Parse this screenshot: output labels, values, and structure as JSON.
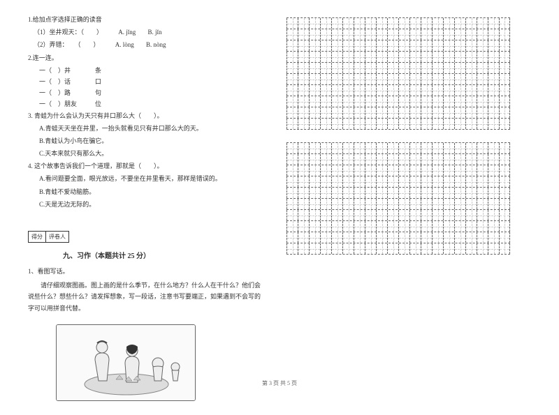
{
  "q1": {
    "title": "1.给加点字选择正确的读音",
    "items": [
      {
        "text": "（1）坐井观天：（　　）",
        "optA": "A. jǐng",
        "optB": "B. jǐn"
      },
      {
        "text": "（2）弄错：　　（　　）",
        "optA": "A. lòng",
        "optB": "B. nòng"
      }
    ]
  },
  "q2": {
    "title": "2.连一连。",
    "items": [
      {
        "left": "一（　）井",
        "right": "条"
      },
      {
        "left": "一（　）话",
        "right": "口"
      },
      {
        "left": "一（　）路",
        "right": "句"
      },
      {
        "left": "一（　）朋友",
        "right": "位"
      }
    ]
  },
  "q3": {
    "title": "3. 青蛙为什么会认为天只有井口那么大（　　）。",
    "opts": [
      "A.青蛙天天坐在井里，一抬头就看见只有井口那么大的天。",
      "B.青蛙认为小鸟在骗它。",
      "C.天本来就只有那么大。"
    ]
  },
  "q4": {
    "title": "4. 这个故事告诉我们一个道理，那就是（　　）。",
    "opts": [
      "A.看问题要全面，眼光放远，不要坐在井里看天，那样是错误的。",
      "B.青蛙不爱动脑筋。",
      "C.天是无边无际的。"
    ]
  },
  "section": {
    "score_label": "得分",
    "reviewer_label": "评卷人",
    "title": "九、习作（本题共计 25 分）"
  },
  "writing": {
    "sub": "1、看图写话。",
    "para": "请仔细观察图画。图上画的是什么季节，在什么地方？什么人在干什么？他们会说些什么？想些什么？请发挥想象，写一段话，注意书写要端正，如果遇到不会写的字可以用拼音代替。"
  },
  "grid": {
    "blocks": 2,
    "rows": 10,
    "cols": 20
  },
  "footer": "第 3 页 共 5 页"
}
